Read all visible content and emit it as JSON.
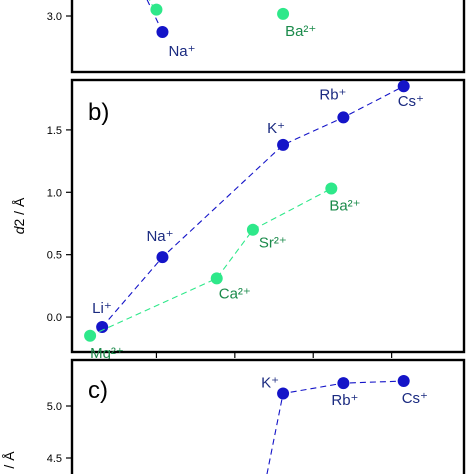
{
  "colors": {
    "series_blue": "#1414c8",
    "series_green": "#2ee88a",
    "label_blue": "#1a2a80",
    "label_green": "#1a8a4a"
  },
  "chart_data": [
    {
      "type": "line",
      "panel": "a",
      "visible": "partial (cropped at top)",
      "yticks": [
        "3.0"
      ],
      "ylim": [
        2.75,
        3.35
      ],
      "series": [
        {
          "points": [
            {
              "label": "Na⁺",
              "x": 2,
              "y": 2.85
            }
          ],
          "labels": [
            "Na⁺"
          ]
        },
        {
          "points": [
            {
              "label": "Ba²⁺",
              "x": 4,
              "y": 3.02
            }
          ],
          "labels": [
            "Ba²⁺"
          ]
        }
      ]
    },
    {
      "type": "line",
      "panel": "b",
      "panel_label": "b)",
      "ylabel": "d2 / Å",
      "yticks": [
        "0.0",
        "0.5",
        "1.0",
        "1.5"
      ],
      "ylim": [
        -0.28,
        1.9
      ],
      "xlim": [
        0.5,
        7
      ],
      "series": [
        {
          "color": "#1414c8",
          "points": [
            {
              "label": "Li⁺",
              "x": 1,
              "y": -0.08
            },
            {
              "label": "Na⁺",
              "x": 2,
              "y": 0.48
            },
            {
              "label": "K⁺",
              "x": 4,
              "y": 1.38
            },
            {
              "label": "Rb⁺",
              "x": 5,
              "y": 1.6
            },
            {
              "label": "Cs⁺",
              "x": 6,
              "y": 1.85
            }
          ]
        },
        {
          "color": "#2ee88a",
          "points": [
            {
              "label": "Mg²⁺",
              "x": 0.8,
              "y": -0.15
            },
            {
              "label": "Ca²⁺",
              "x": 2.9,
              "y": 0.31
            },
            {
              "label": "Sr²⁺",
              "x": 3.5,
              "y": 0.7
            },
            {
              "label": "Ba²⁺",
              "x": 4.8,
              "y": 1.03
            }
          ]
        }
      ]
    },
    {
      "type": "line",
      "panel": "c",
      "panel_label": "c)",
      "visible": "partial (cropped at bottom)",
      "yticks": [
        "4.5",
        "5.0"
      ],
      "ylim": [
        4.0,
        5.35
      ],
      "series": [
        {
          "color": "#1414c8",
          "points": [
            {
              "label": "K⁺",
              "x": 4,
              "y": 5.12
            },
            {
              "label": "Rb⁺",
              "x": 5,
              "y": 5.22
            },
            {
              "label": "Cs⁺",
              "x": 6,
              "y": 5.24
            }
          ]
        }
      ]
    }
  ]
}
